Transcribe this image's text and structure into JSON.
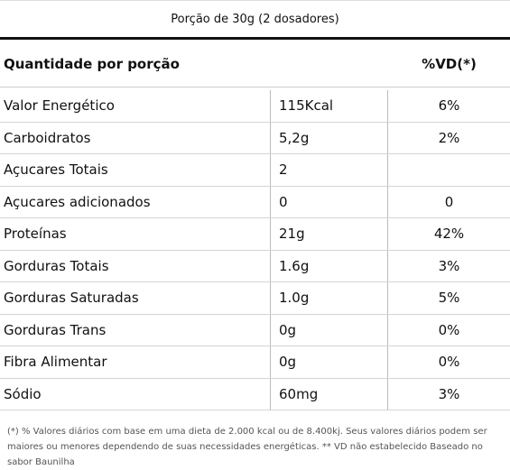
{
  "header": {
    "portion": "Porção de 30g (2 dosadores)"
  },
  "table": {
    "columns": [
      "Quantidade por porção",
      "%VD(*)"
    ],
    "rows": [
      [
        "Valor Energético",
        "115Kcal",
        "6%"
      ],
      [
        "Carboidratos",
        "5,2g",
        "2%"
      ],
      [
        "Açucares Totais",
        "2",
        null
      ],
      [
        "Açucares adicionados",
        "0",
        "0"
      ],
      [
        "Proteínas",
        "21g",
        "42%"
      ],
      [
        "Gorduras Totais",
        "1.6g",
        "3%"
      ],
      [
        "Gorduras Saturadas",
        "1.0g",
        "5%"
      ],
      [
        "Gorduras Trans",
        "0g",
        "0%"
      ],
      [
        "Fibra Alimentar",
        "0g",
        "0%"
      ],
      [
        "Sódio",
        "60mg",
        "3%"
      ]
    ]
  },
  "footnote": "(*) % Valores diários com base em uma dieta de 2.000 kcal ou de 8.400kj. Seus valores diários podem ser maiores ou menores dependendo de suas necessidades energéticas. ** VD não estabelecido Baseado no sabor Baunilha"
}
